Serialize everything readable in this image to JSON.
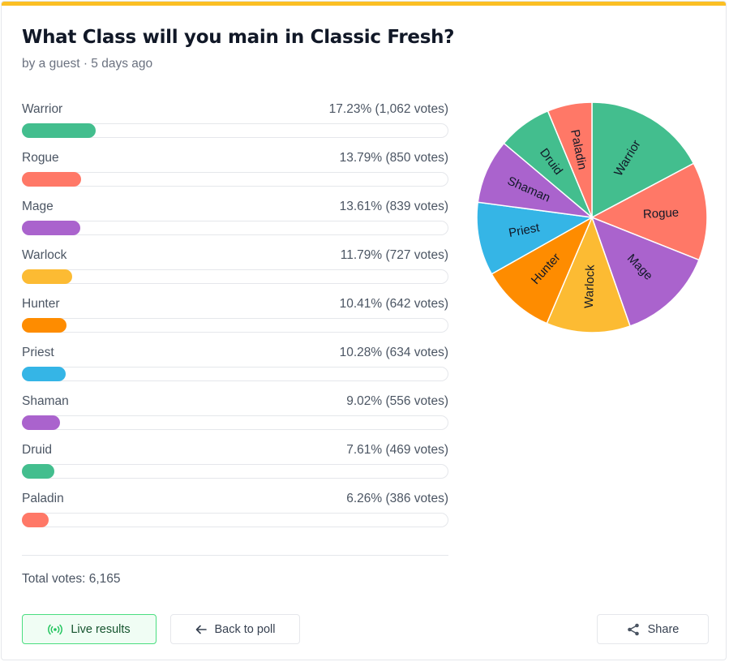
{
  "poll": {
    "title": "What Class will you main in Classic Fresh?",
    "meta": "by a guest · 5 days ago",
    "total": "Total votes: 6,165"
  },
  "results": [
    {
      "label": "Warrior",
      "percent": 17.23,
      "votes": 1062,
      "value_text": "17.23% (1,062 votes)",
      "color": "#43be8e"
    },
    {
      "label": "Rogue",
      "percent": 13.79,
      "votes": 850,
      "value_text": "13.79% (850 votes)",
      "color": "#ff7867"
    },
    {
      "label": "Mage",
      "percent": 13.61,
      "votes": 839,
      "value_text": "13.61% (839 votes)",
      "color": "#aa63cd"
    },
    {
      "label": "Warlock",
      "percent": 11.79,
      "votes": 727,
      "value_text": "11.79% (727 votes)",
      "color": "#fcbb33"
    },
    {
      "label": "Hunter",
      "percent": 10.41,
      "votes": 642,
      "value_text": "10.41% (642 votes)",
      "color": "#fe8c00"
    },
    {
      "label": "Priest",
      "percent": 10.28,
      "votes": 634,
      "value_text": "10.28% (634 votes)",
      "color": "#35b5e6"
    },
    {
      "label": "Shaman",
      "percent": 9.02,
      "votes": 556,
      "value_text": "9.02% (556 votes)",
      "color": "#aa63cd"
    },
    {
      "label": "Druid",
      "percent": 7.61,
      "votes": 469,
      "value_text": "7.61% (469 votes)",
      "color": "#43be8e"
    },
    {
      "label": "Paladin",
      "percent": 6.26,
      "votes": 386,
      "value_text": "6.26% (386 votes)",
      "color": "#ff7867"
    }
  ],
  "chart_data": {
    "type": "pie",
    "categories": [
      "Warrior",
      "Rogue",
      "Mage",
      "Warlock",
      "Hunter",
      "Priest",
      "Shaman",
      "Druid",
      "Paladin"
    ],
    "values": [
      1062,
      850,
      839,
      727,
      642,
      634,
      556,
      469,
      386
    ],
    "colors": [
      "#43be8e",
      "#ff7867",
      "#aa63cd",
      "#fcbb33",
      "#fe8c00",
      "#35b5e6",
      "#aa63cd",
      "#43be8e",
      "#ff7867"
    ],
    "title": "",
    "legend": "none"
  },
  "buttons": {
    "live": "Live results",
    "back": "Back to poll",
    "share": "Share"
  },
  "icons": {
    "live": "broadcast-icon",
    "back": "arrow-left-icon",
    "share": "share-icon"
  },
  "accent": "#fbbf24"
}
